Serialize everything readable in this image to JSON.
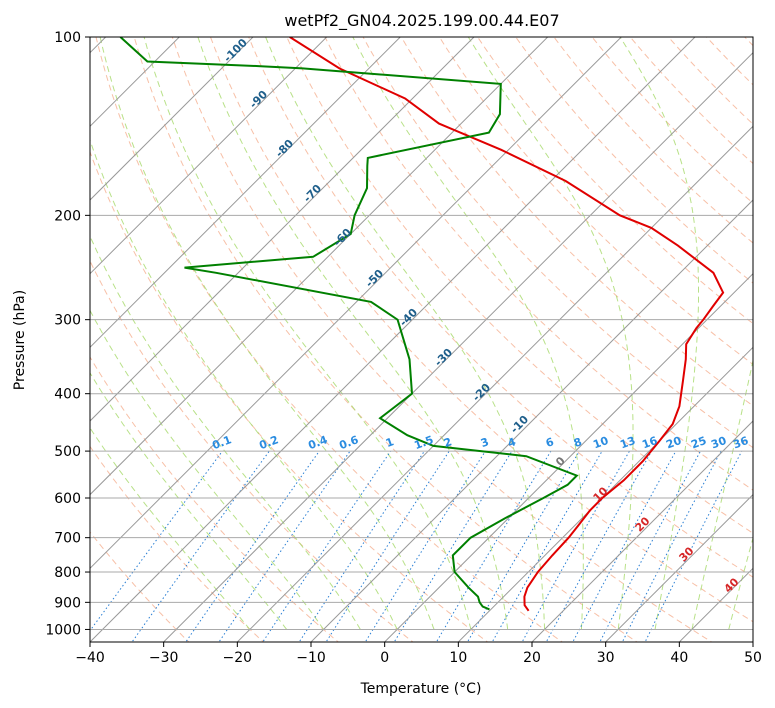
{
  "chart_data": {
    "type": "line",
    "title": "wetPf2_GN04.2025.199.00.44.E07",
    "xlabel": "Temperature (°C)",
    "ylabel": "Pressure (hPa)",
    "xlim": [
      -40,
      50
    ],
    "ylim": [
      1050,
      100
    ],
    "yscale": "log",
    "x_ticks": [
      "−40",
      "−30",
      "−20",
      "−10",
      "0",
      "10",
      "20",
      "30",
      "40",
      "50"
    ],
    "y_ticks": [
      "100",
      "200",
      "300",
      "400",
      "500",
      "600",
      "700",
      "800",
      "900",
      "1000"
    ],
    "grid": true,
    "skew": true,
    "series": [
      {
        "role": "temperature",
        "color": "#e00000",
        "points": [
          [
            15.3,
            930
          ],
          [
            14,
            910
          ],
          [
            12.8,
            880
          ],
          [
            12,
            850
          ],
          [
            11.3,
            800
          ],
          [
            11,
            750
          ],
          [
            10.8,
            700
          ],
          [
            10.5,
            670
          ],
          [
            10,
            630
          ],
          [
            10,
            600
          ],
          [
            10.5,
            560
          ],
          [
            10.5,
            520
          ],
          [
            10,
            480
          ],
          [
            9.5,
            450
          ],
          [
            8,
            420
          ],
          [
            5,
            380
          ],
          [
            2.5,
            350
          ],
          [
            0.5,
            330
          ],
          [
            -0.3,
            310
          ],
          [
            -0.5,
            300
          ],
          [
            -1,
            285
          ],
          [
            -1.5,
            270
          ],
          [
            -5.5,
            250
          ],
          [
            -14,
            225
          ],
          [
            -20,
            210
          ],
          [
            -26,
            200
          ],
          [
            -38,
            175
          ],
          [
            -51,
            155
          ],
          [
            -63,
            140
          ],
          [
            -71,
            127
          ],
          [
            -84,
            113
          ],
          [
            -95,
            100
          ]
        ]
      },
      {
        "role": "dewpoint",
        "color": "#008000",
        "points": [
          [
            9.8,
            925
          ],
          [
            8.5,
            915
          ],
          [
            7.5,
            900
          ],
          [
            6.5,
            880
          ],
          [
            4,
            850
          ],
          [
            0,
            800
          ],
          [
            -2.5,
            750
          ],
          [
            -2.5,
            700
          ],
          [
            -0.5,
            650
          ],
          [
            2,
            600
          ],
          [
            3.5,
            570
          ],
          [
            3.5,
            550
          ],
          [
            -6,
            510
          ],
          [
            -20,
            490
          ],
          [
            -25,
            470
          ],
          [
            -31,
            440
          ],
          [
            -30,
            400
          ],
          [
            -35,
            350
          ],
          [
            -42,
            300
          ],
          [
            -48,
            280
          ],
          [
            -73,
            250
          ],
          [
            -78,
            245
          ],
          [
            -62,
            235
          ],
          [
            -60,
            215
          ],
          [
            -62,
            200
          ],
          [
            -64,
            180
          ],
          [
            -67,
            165
          ],
          [
            -68,
            160
          ],
          [
            -55,
            145
          ],
          [
            -56,
            135
          ],
          [
            -60,
            120
          ],
          [
            -89,
            113
          ],
          [
            -95,
            112
          ],
          [
            -111,
            110
          ],
          [
            -118,
            100
          ]
        ]
      }
    ],
    "dry_adiabat_labels": [
      "-100",
      "-90",
      "-80",
      "-70",
      "-60",
      "-50",
      "-40",
      "-30",
      "-20",
      "-10"
    ],
    "moist_adiabat_labels": [
      "0",
      "10",
      "20",
      "30",
      "40"
    ],
    "mixing_ratio_labels": [
      "0.1",
      "0.2",
      "0.4",
      "0.6",
      "1",
      "1.5",
      "2",
      "3",
      "4",
      "6",
      "8",
      "10",
      "13",
      "16",
      "20",
      "25",
      "30",
      "36"
    ]
  }
}
